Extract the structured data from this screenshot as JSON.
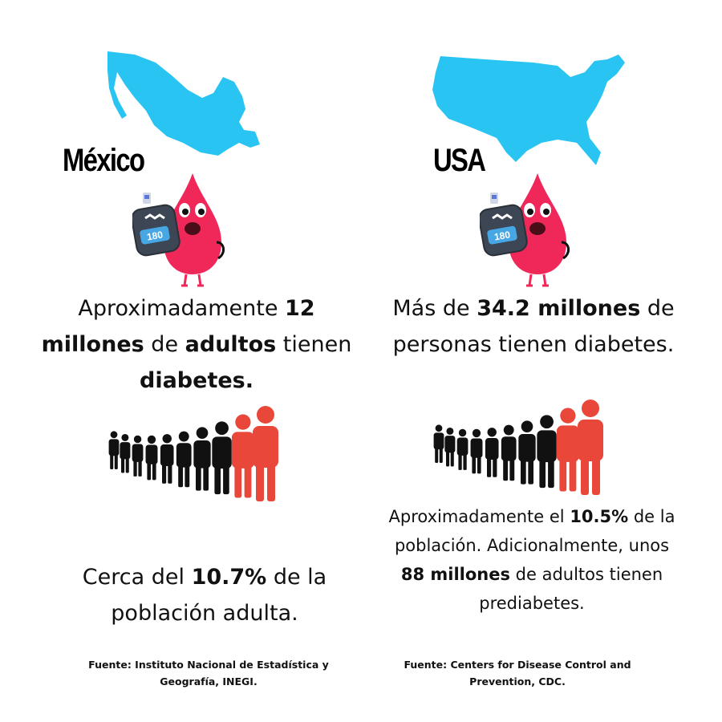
{
  "mexico": {
    "name": "México",
    "stat_main": {
      "prefix": "Aproximadamente ",
      "num": "12",
      "mid1": " ",
      "word1": "millones",
      "mid2": " de ",
      "word2": "adultos",
      "mid3": " tienen ",
      "word3": "diabetes."
    },
    "stat_pct": {
      "prefix": "Cerca del ",
      "pct": "10.7%",
      "suffix": " de la población adulta."
    },
    "source": "Fuente: Instituto Nacional de Estadística y Geografía, INEGI."
  },
  "usa": {
    "name": "USA",
    "stat_main": {
      "prefix": "Más de ",
      "num": "34.2 millones",
      "suffix": " de personas tienen diabetes."
    },
    "stat_pct": {
      "prefix": "Aproximadamente el ",
      "pct": "10.5%",
      "mid": " de la población. Adicionalmente, unos ",
      "num": "88 millones",
      "suffix": " de adultos tienen prediabetes."
    },
    "source": "Fuente: Centers for Disease Control and Prevention, CDC."
  },
  "glucometer_reading": "180",
  "colors": {
    "map": "#29c4f2",
    "drop": "#f0285a",
    "highlight_people": "#e8473a",
    "people": "#111111",
    "meter": "#3c4654",
    "meter_screen": "#47a7e5"
  },
  "icons": [
    "mexico-map-icon",
    "usa-map-icon",
    "blood-drop-mascot-icon",
    "glucometer-icon",
    "people-row-icon"
  ]
}
